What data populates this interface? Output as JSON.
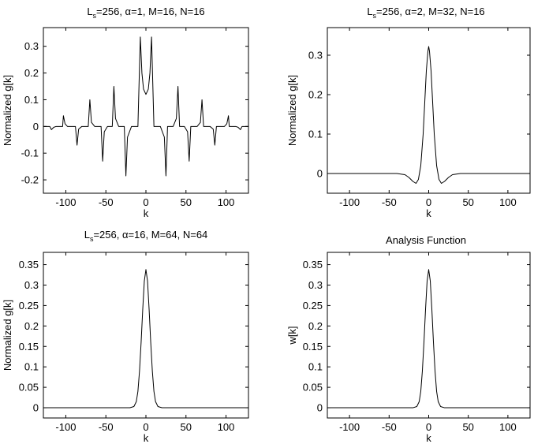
{
  "chart_data": [
    {
      "type": "line",
      "title_main": "L",
      "title_sub": "s",
      "title_rest": "=256, α=1, M=16, N=16",
      "xlabel": "k",
      "ylabel": "Normalized g[k]",
      "xlim": [
        -128,
        128
      ],
      "ylim": [
        -0.25,
        0.37
      ],
      "xticks": [
        -100,
        -50,
        0,
        50,
        100
      ],
      "yticks": [
        -0.2,
        -0.1,
        0,
        0.1,
        0.2,
        0.3
      ],
      "ytick_labels": [
        "-0.2",
        "-0.1",
        "0",
        "0.1",
        "0.2",
        "0.3"
      ],
      "xtick_labels": [
        "-100",
        "-50",
        "0",
        "50",
        "100"
      ],
      "series": [
        {
          "points": [
            [
              -128,
              0
            ],
            [
              -120,
              0.0
            ],
            [
              -118,
              -0.012
            ],
            [
              -115,
              -0.003
            ],
            [
              -112,
              0
            ],
            [
              -104,
              0.0
            ],
            [
              -103,
              0.04
            ],
            [
              -101,
              0.01
            ],
            [
              -98,
              0
            ],
            [
              -88,
              0.0
            ],
            [
              -86,
              -0.07
            ],
            [
              -84,
              -0.01
            ],
            [
              -80,
              0
            ],
            [
              -72,
              0.0
            ],
            [
              -70,
              0.1
            ],
            [
              -68,
              0.015
            ],
            [
              -64,
              0
            ],
            [
              -56,
              0.0
            ],
            [
              -54,
              -0.13
            ],
            [
              -52,
              -0.02
            ],
            [
              -48,
              0
            ],
            [
              -42,
              0.0
            ],
            [
              -40,
              0.15
            ],
            [
              -38,
              0.03
            ],
            [
              -34,
              0
            ],
            [
              -27,
              0.0
            ],
            [
              -25,
              -0.185
            ],
            [
              -23,
              -0.04
            ],
            [
              -18,
              0
            ],
            [
              -10,
              0.0
            ],
            [
              -7,
              0.335
            ],
            [
              -5,
              0.2
            ],
            [
              -3,
              0.14
            ],
            [
              0,
              0.12
            ],
            [
              3,
              0.14
            ],
            [
              5,
              0.2
            ],
            [
              7,
              0.335
            ],
            [
              10,
              0.0
            ],
            [
              18,
              0
            ],
            [
              23,
              -0.04
            ],
            [
              25,
              -0.185
            ],
            [
              27,
              0.0
            ],
            [
              34,
              0
            ],
            [
              38,
              0.03
            ],
            [
              40,
              0.15
            ],
            [
              42,
              0.0
            ],
            [
              48,
              0
            ],
            [
              52,
              -0.02
            ],
            [
              54,
              -0.13
            ],
            [
              56,
              0.0
            ],
            [
              64,
              0
            ],
            [
              68,
              0.015
            ],
            [
              70,
              0.1
            ],
            [
              72,
              0.0
            ],
            [
              80,
              0
            ],
            [
              84,
              -0.01
            ],
            [
              86,
              -0.07
            ],
            [
              88,
              0.0
            ],
            [
              98,
              0
            ],
            [
              101,
              0.01
            ],
            [
              103,
              0.04
            ],
            [
              104,
              0.0
            ],
            [
              112,
              0
            ],
            [
              115,
              -0.003
            ],
            [
              118,
              -0.012
            ],
            [
              120,
              0.0
            ],
            [
              128,
              0
            ]
          ]
        }
      ]
    },
    {
      "type": "line",
      "title_main": "L",
      "title_sub": "s",
      "title_rest": "=256, α=2, M=32, N=16",
      "xlabel": "k",
      "ylabel": "Normalized g[k]",
      "xlim": [
        -128,
        128
      ],
      "ylim": [
        -0.05,
        0.37
      ],
      "xticks": [
        -100,
        -50,
        0,
        50,
        100
      ],
      "yticks": [
        0,
        0.1,
        0.2,
        0.3
      ],
      "ytick_labels": [
        "0",
        "0.1",
        "0.2",
        "0.3"
      ],
      "xtick_labels": [
        "-100",
        "-50",
        "0",
        "50",
        "100"
      ],
      "series": [
        {
          "points": [
            [
              -128,
              0
            ],
            [
              -40,
              0
            ],
            [
              -30,
              -0.003
            ],
            [
              -25,
              -0.01
            ],
            [
              -20,
              -0.02
            ],
            [
              -16,
              -0.025
            ],
            [
              -13,
              -0.015
            ],
            [
              -10,
              0.02
            ],
            [
              -7,
              0.1
            ],
            [
              -5,
              0.18
            ],
            [
              -3,
              0.26
            ],
            [
              -1,
              0.31
            ],
            [
              0,
              0.322
            ],
            [
              1,
              0.31
            ],
            [
              3,
              0.26
            ],
            [
              5,
              0.18
            ],
            [
              7,
              0.1
            ],
            [
              10,
              0.02
            ],
            [
              13,
              -0.015
            ],
            [
              16,
              -0.025
            ],
            [
              20,
              -0.02
            ],
            [
              25,
              -0.01
            ],
            [
              30,
              -0.003
            ],
            [
              40,
              0
            ],
            [
              128,
              0
            ]
          ]
        }
      ]
    },
    {
      "type": "line",
      "title_main": "L",
      "title_sub": "s",
      "title_rest": "=256, α=16, M=64, N=64",
      "xlabel": "k",
      "ylabel": "Normalized g[k]",
      "xlim": [
        -128,
        128
      ],
      "ylim": [
        -0.025,
        0.38
      ],
      "xticks": [
        -100,
        -50,
        0,
        50,
        100
      ],
      "yticks": [
        0,
        0.05,
        0.1,
        0.15,
        0.2,
        0.25,
        0.3,
        0.35
      ],
      "ytick_labels": [
        "0",
        "0.05",
        "0.1",
        "0.15",
        "0.2",
        "0.25",
        "0.3",
        "0.35"
      ],
      "xtick_labels": [
        "-100",
        "-50",
        "0",
        "50",
        "100"
      ],
      "series": [
        {
          "points": [
            [
              -128,
              0
            ],
            [
              -20,
              0
            ],
            [
              -15,
              0.003
            ],
            [
              -12,
              0.015
            ],
            [
              -10,
              0.04
            ],
            [
              -8,
              0.09
            ],
            [
              -6,
              0.16
            ],
            [
              -4,
              0.24
            ],
            [
              -2,
              0.31
            ],
            [
              0,
              0.338
            ],
            [
              2,
              0.31
            ],
            [
              4,
              0.24
            ],
            [
              6,
              0.16
            ],
            [
              8,
              0.09
            ],
            [
              10,
              0.04
            ],
            [
              12,
              0.015
            ],
            [
              15,
              0.003
            ],
            [
              20,
              0
            ],
            [
              128,
              0
            ]
          ]
        }
      ]
    },
    {
      "type": "line",
      "title_main": "Analysis Function",
      "title_sub": "",
      "title_rest": "",
      "xlabel": "k",
      "ylabel": "w[k]",
      "xlim": [
        -128,
        128
      ],
      "ylim": [
        -0.025,
        0.38
      ],
      "xticks": [
        -100,
        -50,
        0,
        50,
        100
      ],
      "yticks": [
        0,
        0.05,
        0.1,
        0.15,
        0.2,
        0.25,
        0.3,
        0.35
      ],
      "ytick_labels": [
        "0",
        "0.05",
        "0.1",
        "0.15",
        "0.2",
        "0.25",
        "0.3",
        "0.35"
      ],
      "xtick_labels": [
        "-100",
        "-50",
        "0",
        "50",
        "100"
      ],
      "series": [
        {
          "points": [
            [
              -128,
              0
            ],
            [
              -20,
              0
            ],
            [
              -15,
              0.003
            ],
            [
              -12,
              0.015
            ],
            [
              -10,
              0.04
            ],
            [
              -8,
              0.09
            ],
            [
              -6,
              0.16
            ],
            [
              -4,
              0.24
            ],
            [
              -2,
              0.31
            ],
            [
              0,
              0.338
            ],
            [
              2,
              0.31
            ],
            [
              4,
              0.24
            ],
            [
              6,
              0.16
            ],
            [
              8,
              0.09
            ],
            [
              10,
              0.04
            ],
            [
              12,
              0.015
            ],
            [
              15,
              0.003
            ],
            [
              20,
              0
            ],
            [
              128,
              0
            ]
          ]
        }
      ]
    }
  ]
}
